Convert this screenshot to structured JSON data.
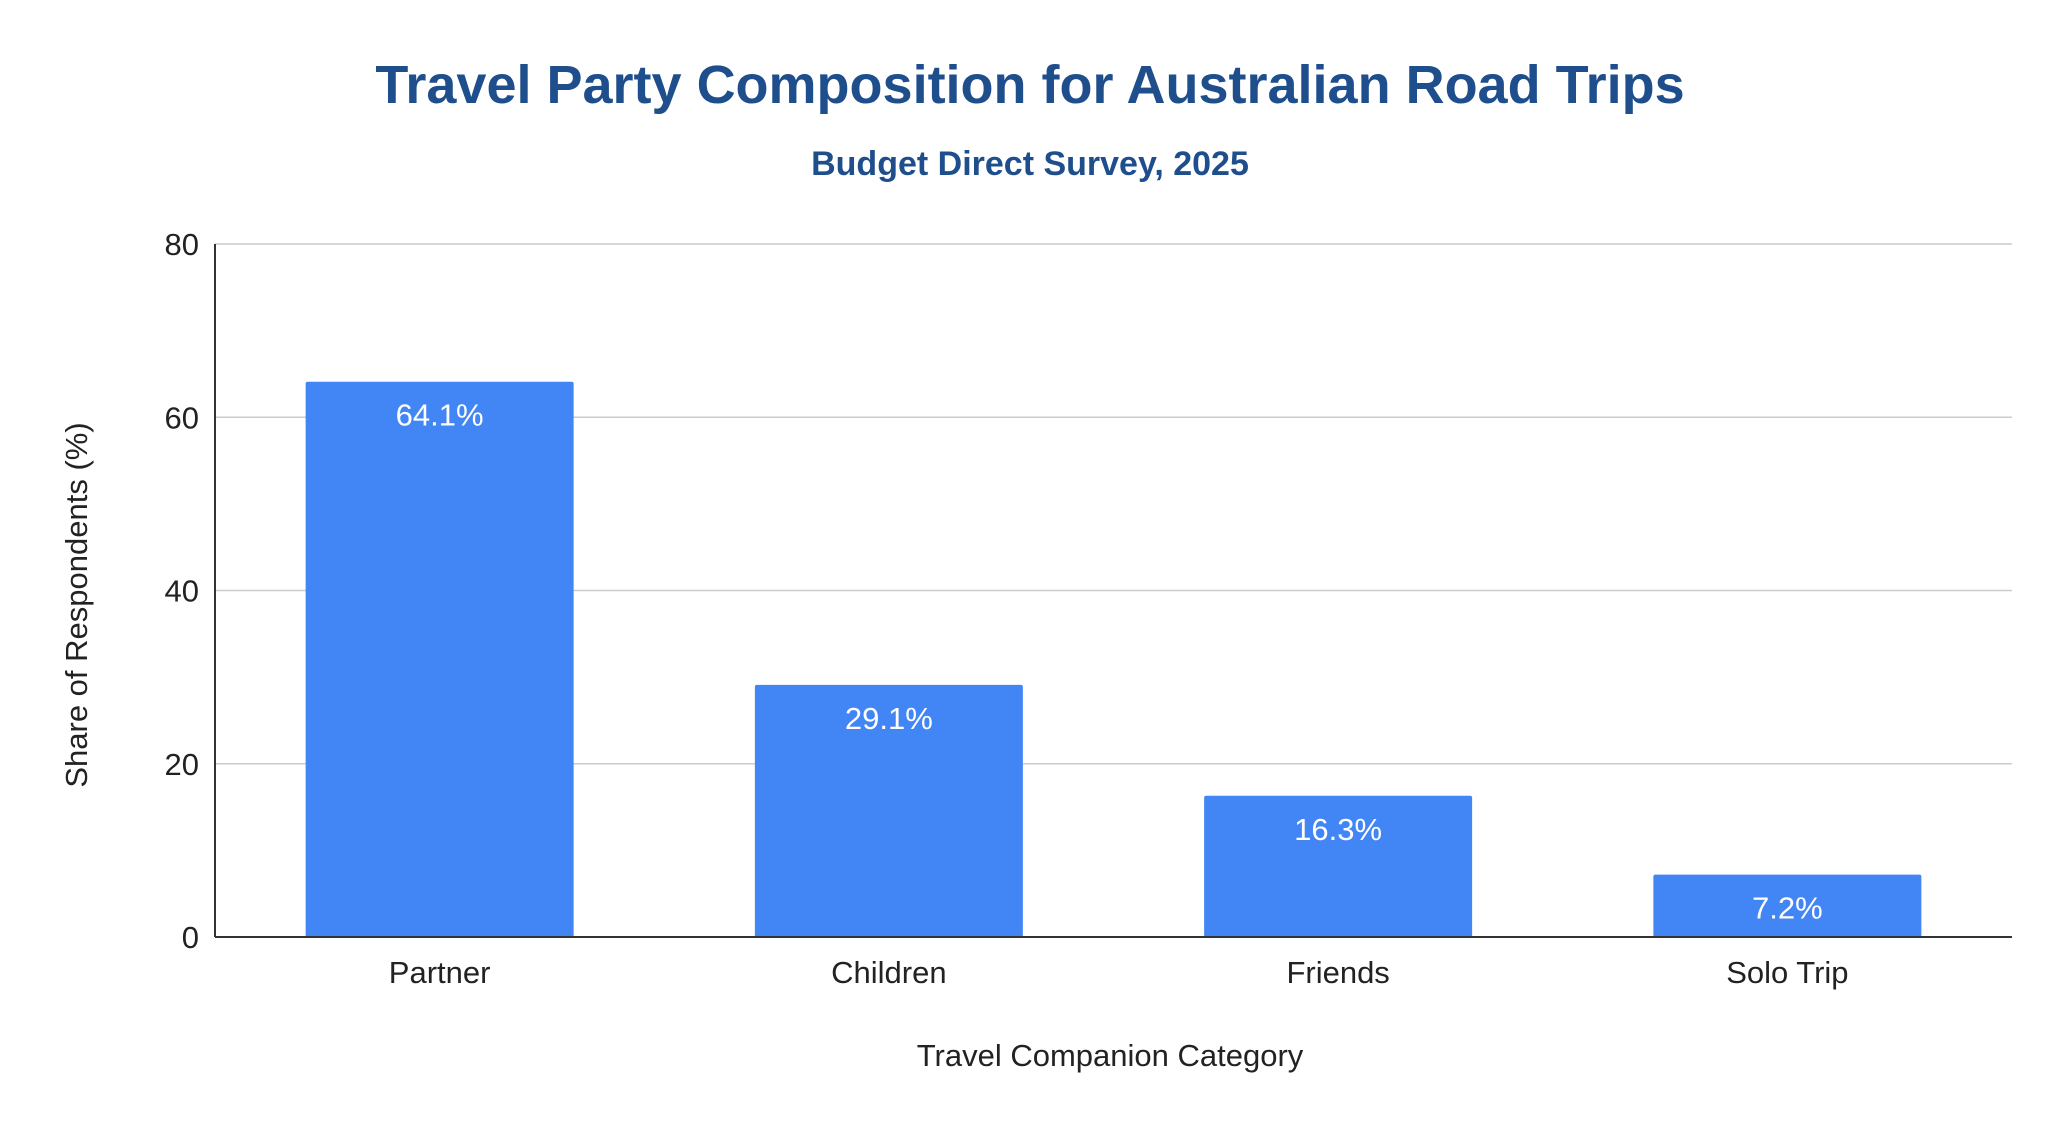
{
  "chart_data": {
    "type": "bar",
    "title": "Travel Party Composition for Australian Road Trips",
    "subtitle": "Budget Direct Survey, 2025",
    "xlabel": "Travel Companion Category",
    "ylabel": "Share of Respondents (%)",
    "categories": [
      "Partner",
      "Children",
      "Friends",
      "Solo Trip"
    ],
    "values": [
      64.1,
      29.1,
      16.3,
      7.2
    ],
    "data_labels": [
      "64.1%",
      "29.1%",
      "16.3%",
      "7.2%"
    ],
    "ylim": [
      0,
      80
    ],
    "yticks": [
      0,
      20,
      40,
      60,
      80
    ],
    "ytick_labels": [
      "0",
      "20",
      "40",
      "60",
      "80"
    ],
    "grid": true,
    "legend": "none",
    "colors": {
      "bar": "#4285f4",
      "title": "#1f4e8c",
      "grid": "#cccccc",
      "axis": "#333333",
      "text": "#222222",
      "data_label": "#ffffff"
    }
  }
}
